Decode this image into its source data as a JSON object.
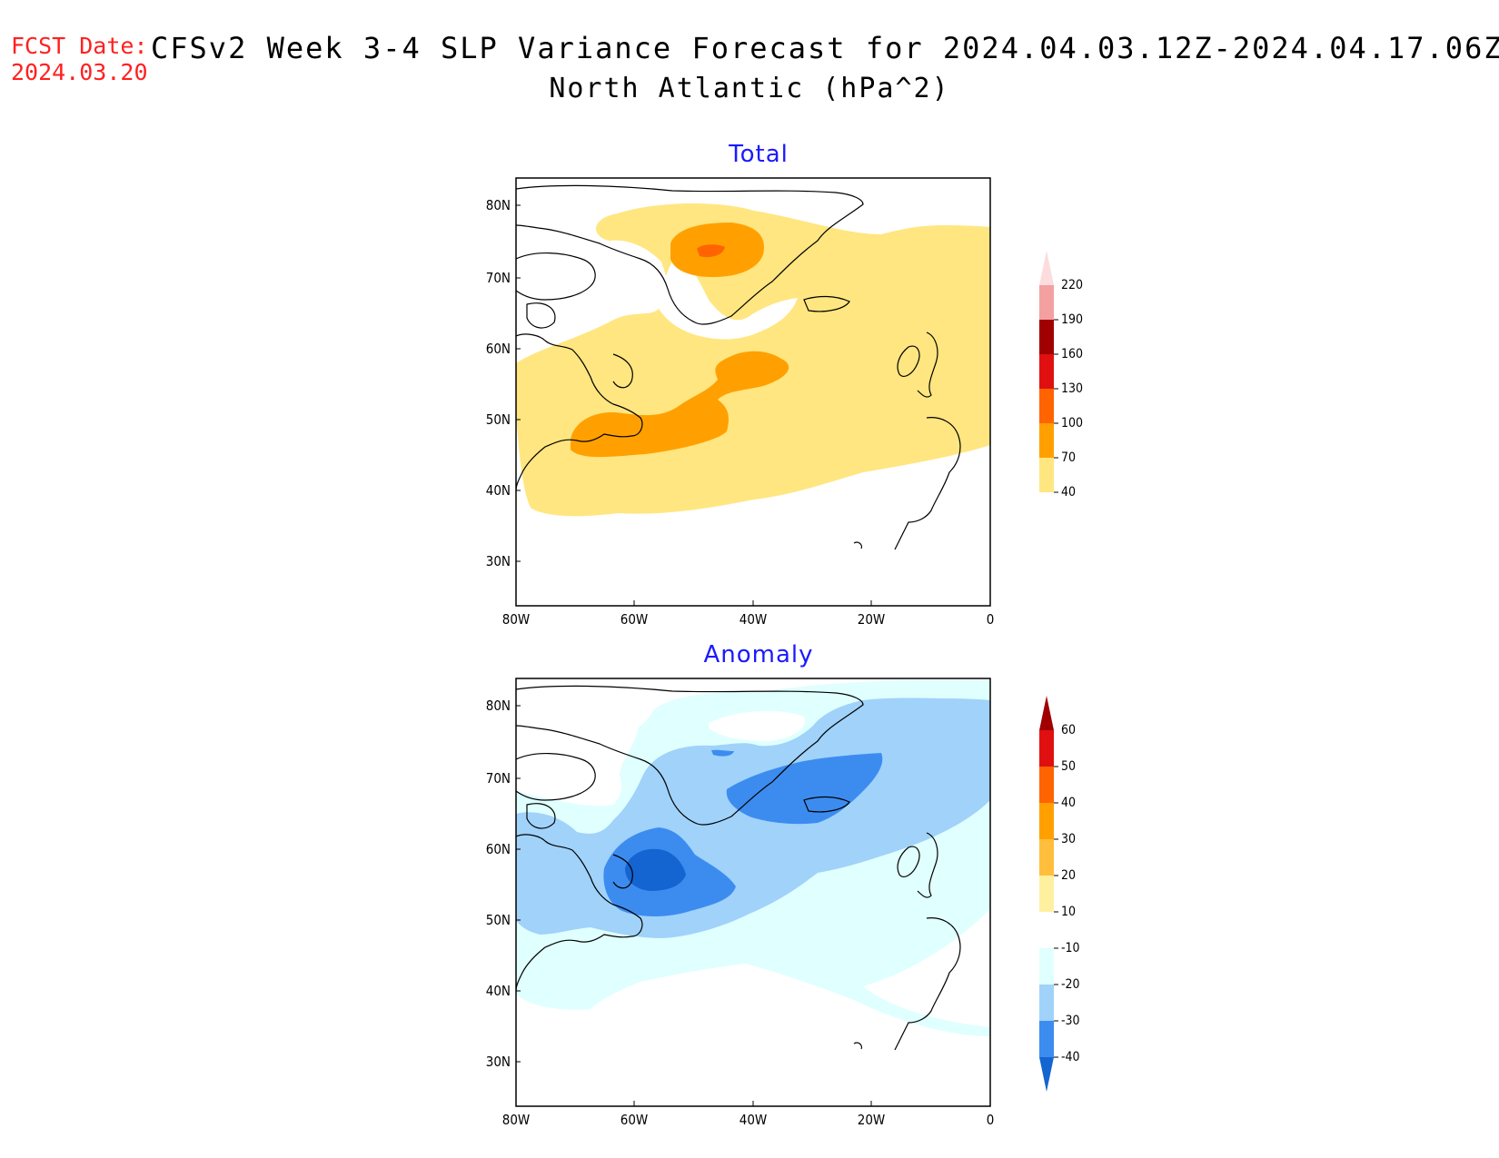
{
  "header": {
    "fcst_label": "FCST Date:",
    "fcst_date": "2024.03.20",
    "title_line1": "CFSv2 Week 3-4 SLP Variance Forecast for 2024.04.03.12Z-2024.04.17.06Z",
    "title_line2": "North Atlantic (hPa^2)"
  },
  "panels": {
    "total": {
      "title": "Total",
      "lat_labels": [
        "80N",
        "70N",
        "60N",
        "50N",
        "40N",
        "30N"
      ],
      "lon_labels": [
        "80W",
        "60W",
        "40W",
        "20W",
        "0"
      ],
      "colorbar": {
        "labels": [
          "220",
          "190",
          "160",
          "130",
          "100",
          "70",
          "40"
        ],
        "colors": [
          "#fcdcdc",
          "#f4a0a0",
          "#a00000",
          "#e01010",
          "#ff6400",
          "#ffa000",
          "#ffe680"
        ]
      }
    },
    "anomaly": {
      "title": "Anomaly",
      "lat_labels": [
        "80N",
        "70N",
        "60N",
        "50N",
        "40N",
        "30N"
      ],
      "lon_labels": [
        "80W",
        "60W",
        "40W",
        "20W",
        "0"
      ],
      "colorbar": {
        "labels": [
          "60",
          "50",
          "40",
          "30",
          "20",
          "10",
          "-10",
          "-20",
          "-30",
          "-40"
        ],
        "colors": [
          "#a00000",
          "#e01010",
          "#ff6400",
          "#ffa000",
          "#ffbe3c",
          "#fff0a0",
          "#ffffff",
          "#e0ffff",
          "#a0d2fa",
          "#3c8cf0",
          "#1464d2"
        ]
      }
    }
  }
}
